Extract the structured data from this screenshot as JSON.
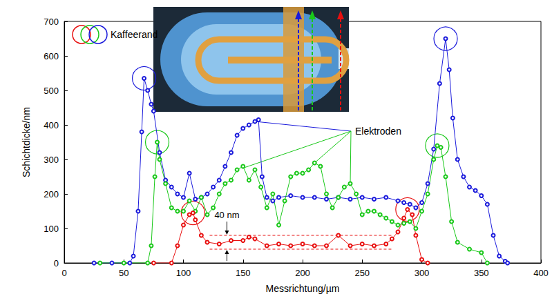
{
  "chart_data": {
    "type": "line",
    "marker": "circle",
    "x_label": "Messrichtung/µm",
    "y_label": "Schichtdicke/nm",
    "xlim": [
      0,
      400
    ],
    "xticks": [
      0,
      50,
      100,
      150,
      200,
      250,
      300,
      350,
      400
    ],
    "ylim": [
      0,
      700
    ],
    "yticks": [
      0,
      100,
      200,
      300,
      400,
      500,
      600,
      700
    ],
    "grid": false,
    "series": [
      {
        "color": "#1a1adb",
        "x": [
          25,
          40,
          55,
          58,
          62,
          65,
          67,
          70,
          73,
          75,
          80,
          85,
          90,
          95,
          100,
          105,
          110,
          115,
          120,
          125,
          130,
          135,
          140,
          145,
          150,
          155,
          160,
          163,
          166,
          170,
          175,
          180,
          190,
          200,
          210,
          220,
          230,
          240,
          250,
          260,
          270,
          280,
          285,
          290,
          295,
          300,
          305,
          310,
          315,
          320,
          323,
          326,
          330,
          335,
          340,
          345,
          350,
          355,
          360,
          365,
          370,
          372
        ],
        "values": [
          0,
          0,
          0,
          20,
          150,
          380,
          535,
          500,
          460,
          440,
          320,
          240,
          220,
          200,
          190,
          260,
          185,
          190,
          200,
          220,
          240,
          280,
          320,
          370,
          390,
          400,
          410,
          415,
          250,
          190,
          180,
          190,
          195,
          190,
          190,
          185,
          190,
          185,
          190,
          185,
          190,
          180,
          175,
          170,
          160,
          175,
          230,
          330,
          520,
          650,
          560,
          420,
          300,
          250,
          220,
          210,
          195,
          170,
          80,
          20,
          5,
          0
        ]
      },
      {
        "color": "#19c819",
        "x": [
          30,
          50,
          70,
          73,
          76,
          78,
          80,
          85,
          90,
          95,
          100,
          105,
          110,
          115,
          120,
          125,
          130,
          135,
          140,
          145,
          150,
          155,
          160,
          165,
          170,
          175,
          180,
          185,
          190,
          195,
          200,
          205,
          210,
          215,
          220,
          225,
          230,
          235,
          240,
          245,
          250,
          255,
          260,
          265,
          270,
          275,
          280,
          285,
          290,
          295,
          300,
          305,
          310,
          313,
          316,
          320,
          325,
          330,
          340,
          350,
          355
        ],
        "values": [
          0,
          0,
          0,
          50,
          250,
          350,
          300,
          230,
          160,
          150,
          150,
          180,
          150,
          190,
          140,
          160,
          200,
          230,
          240,
          270,
          280,
          240,
          270,
          220,
          160,
          200,
          110,
          180,
          250,
          260,
          260,
          270,
          290,
          280,
          200,
          160,
          190,
          220,
          230,
          200,
          140,
          150,
          150,
          140,
          130,
          120,
          110,
          115,
          120,
          100,
          150,
          200,
          300,
          340,
          335,
          250,
          120,
          60,
          40,
          30,
          0
        ]
      },
      {
        "color": "#e81010",
        "x": [
          75,
          90,
          95,
          100,
          105,
          108,
          110,
          115,
          120,
          130,
          140,
          150,
          155,
          160,
          170,
          180,
          190,
          200,
          210,
          220,
          230,
          240,
          250,
          260,
          270,
          275,
          280,
          285,
          288,
          292,
          295,
          300,
          305
        ],
        "values": [
          0,
          0,
          50,
          110,
          140,
          145,
          125,
          80,
          60,
          55,
          65,
          65,
          75,
          70,
          50,
          55,
          50,
          55,
          50,
          50,
          80,
          50,
          55,
          50,
          55,
          70,
          90,
          130,
          155,
          140,
          80,
          10,
          0
        ]
      }
    ],
    "annotations": {
      "coffee_ring": "Kaffeerand",
      "electrodes": {
        "text": "Elektroden",
        "points": [
          {
            "x": 160,
            "y": 410,
            "color": "#1a1adb"
          },
          {
            "x": 150,
            "y": 275,
            "color": "#19c819"
          },
          {
            "x": 210,
            "y": 290,
            "color": "#19c819"
          },
          {
            "x": 240,
            "y": 230,
            "color": "#19c819"
          }
        ]
      },
      "thickness_band": {
        "text": "40 nm",
        "x": [
          122,
          275
        ],
        "y": [
          40,
          80
        ]
      }
    }
  }
}
